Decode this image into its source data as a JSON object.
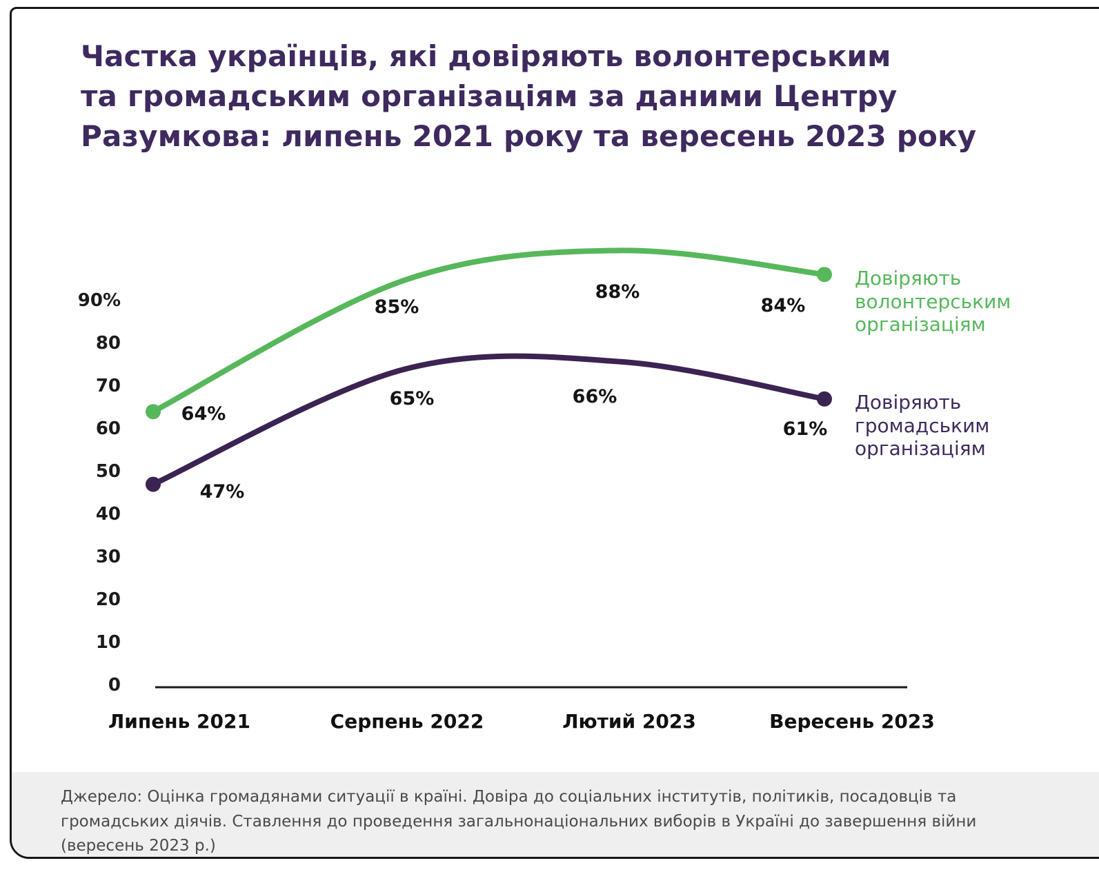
{
  "title": "Частка українців, які довіряють волонтерським\nта громадським організаціям за даними Центру\nРазумкова: липень 2021 року та вересень 2023 року",
  "chart_data": {
    "type": "line",
    "categories": [
      "Липень 2021",
      "Серпень 2022",
      "Лютий 2023",
      "Вересень 2023"
    ],
    "series": [
      {
        "name": "Довіряють волонтерським організаціям",
        "values": [
          64,
          85,
          88,
          84
        ],
        "color": "#57b75b"
      },
      {
        "name": "Довіряють громадським організаціям",
        "values": [
          47,
          65,
          66,
          61
        ],
        "color": "#3b2352"
      }
    ],
    "y_axis_ticks": [
      "90%",
      "80",
      "70",
      "60",
      "50",
      "40",
      "30",
      "20",
      "10",
      "0"
    ],
    "ylim": [
      0,
      100
    ],
    "grid": false,
    "legend_position": "right",
    "markers": "endpoints-only"
  },
  "legend": {
    "volunteer": "Довіряють\nволонтерським\nорганізаціям",
    "civic": "Довіряють\nгромадським\nорганізаціям"
  },
  "source": "Джерело: Оцінка громадянами ситуації в країні. Довіра до соціальних інститутів, політиків, посадовців та громадських діячів. Ставлення до проведення загальнонаціональних виборів в Україні до завершення війни (вересень 2023 р.)",
  "colors": {
    "green": "#57b75b",
    "purple": "#3b2352",
    "title": "#3e2a5e",
    "axis": "#1a1a1a",
    "footer_bg": "#efefef",
    "footer_text": "#4a4a4a"
  }
}
